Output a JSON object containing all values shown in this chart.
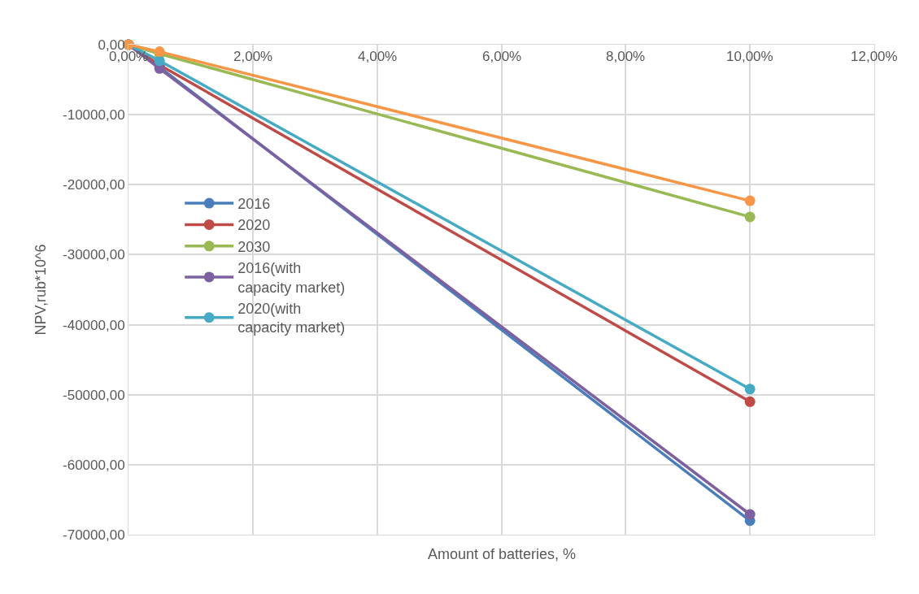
{
  "chart_data": {
    "type": "line",
    "xlabel": "Amount of batteries, %",
    "ylabel": "NPV,rub*10^6",
    "x": [
      0,
      0.5,
      10
    ],
    "series": [
      {
        "name": "2016",
        "color": "#4a7ebb",
        "values": [
          0,
          -3200,
          -68000
        ]
      },
      {
        "name": "2020",
        "color": "#be4b48",
        "values": [
          0,
          -2900,
          -51000
        ]
      },
      {
        "name": "2030",
        "color": "#98b954",
        "values": [
          0,
          -1300,
          -24600
        ]
      },
      {
        "name": "2016(with capacity market)",
        "color": "#7d60a0",
        "values": [
          0,
          -3400,
          -67100
        ]
      },
      {
        "name": "2020(with capacity market)",
        "color": "#46aac5",
        "values": [
          0,
          -2300,
          -49200
        ]
      },
      {
        "color": "#f79646",
        "values": [
          0,
          -1000,
          -22300
        ]
      }
    ],
    "xlim": [
      0,
      12
    ],
    "xticks": [
      {
        "value": 0,
        "label": "0,00%"
      },
      {
        "value": 2,
        "label": "2,00%"
      },
      {
        "value": 4,
        "label": "4,00%"
      },
      {
        "value": 6,
        "label": "6,00%"
      },
      {
        "value": 8,
        "label": "8,00%"
      },
      {
        "value": 10,
        "label": "10,00%"
      },
      {
        "value": 12,
        "label": "12,00%"
      }
    ],
    "ylim": [
      -70000,
      0
    ],
    "yticks": [
      {
        "value": 0,
        "label": "0,00"
      },
      {
        "value": -10000,
        "label": "-10000,00"
      },
      {
        "value": -20000,
        "label": "-20000,00"
      },
      {
        "value": -30000,
        "label": "-30000,00"
      },
      {
        "value": -40000,
        "label": "-40000,00"
      },
      {
        "value": -50000,
        "label": "-50000,00"
      },
      {
        "value": -60000,
        "label": "-60000,00"
      },
      {
        "value": -70000,
        "label": "-70000,00"
      }
    ],
    "grid": true,
    "legend": "left",
    "marker": "circle",
    "line_style": "solid"
  }
}
